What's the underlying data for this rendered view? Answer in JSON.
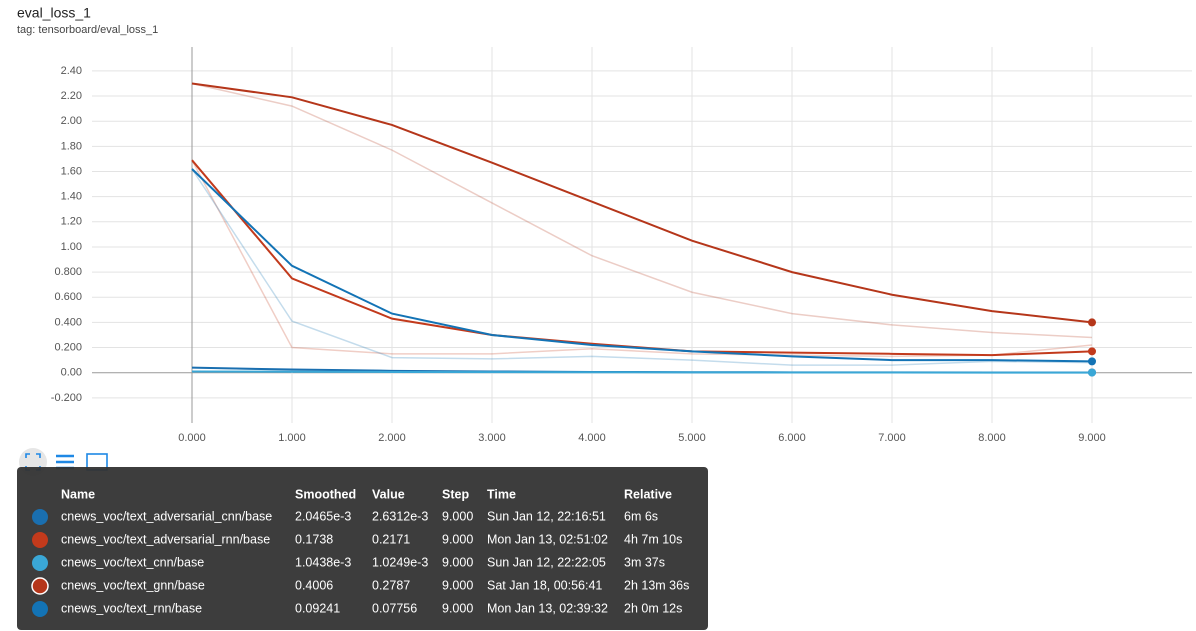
{
  "chart_data": {
    "type": "line",
    "title": "eval_loss_1",
    "subtitle": "tag: tensorboard/eval_loss_1",
    "x": [
      0,
      1,
      2,
      3,
      4,
      5,
      6,
      7,
      8,
      9
    ],
    "xlim": [
      -1,
      10
    ],
    "xticks": [
      {
        "value": 0,
        "label": "0.000"
      },
      {
        "value": 1,
        "label": "1.000"
      },
      {
        "value": 2,
        "label": "2.000"
      },
      {
        "value": 3,
        "label": "3.000"
      },
      {
        "value": 4,
        "label": "4.000"
      },
      {
        "value": 5,
        "label": "5.000"
      },
      {
        "value": 6,
        "label": "6.000"
      },
      {
        "value": 7,
        "label": "7.000"
      },
      {
        "value": 8,
        "label": "8.000"
      },
      {
        "value": 9,
        "label": "9.000"
      }
    ],
    "ylim": [
      -0.4,
      2.59
    ],
    "yticks": [
      {
        "value": -0.2,
        "label": "-0.200"
      },
      {
        "value": 0,
        "label": "0.00"
      },
      {
        "value": 0.2,
        "label": "0.200"
      },
      {
        "value": 0.4,
        "label": "0.400"
      },
      {
        "value": 0.6,
        "label": "0.600"
      },
      {
        "value": 0.8,
        "label": "0.800"
      },
      {
        "value": 1,
        "label": "1.00"
      },
      {
        "value": 1.2,
        "label": "1.20"
      },
      {
        "value": 1.4,
        "label": "1.40"
      },
      {
        "value": 1.6,
        "label": "1.60"
      },
      {
        "value": 1.8,
        "label": "1.80"
      },
      {
        "value": 2,
        "label": "2.00"
      },
      {
        "value": 2.2,
        "label": "2.20"
      },
      {
        "value": 2.4,
        "label": "2.40"
      }
    ],
    "grid": true,
    "series": [
      {
        "name": "cnews_voc/text_adversarial_cnn/base",
        "color": "#1a6fb0",
        "values": [
          0.04,
          0.025,
          0.015,
          0.01,
          0.006,
          0.004,
          0.003,
          0.003,
          0.002,
          0.002
        ],
        "raw": [
          0.04,
          0.02,
          0.01,
          0.008,
          0.005,
          0.004,
          0.003,
          0.003,
          0.002,
          0.0026
        ]
      },
      {
        "name": "cnews_voc/text_adversarial_rnn/base",
        "color": "#c23a1c",
        "values": [
          1.69,
          0.75,
          0.43,
          0.3,
          0.23,
          0.17,
          0.16,
          0.15,
          0.14,
          0.17
        ],
        "raw": [
          1.69,
          0.2,
          0.15,
          0.15,
          0.19,
          0.15,
          0.14,
          0.13,
          0.14,
          0.22
        ]
      },
      {
        "name": "cnews_voc/text_cnn/base",
        "color": "#3aa7d6",
        "values": [
          0.01,
          0.008,
          0.006,
          0.005,
          0.004,
          0.003,
          0.002,
          0.002,
          0.001,
          0.001
        ],
        "raw": [
          0.01,
          0.007,
          0.005,
          0.004,
          0.003,
          0.003,
          0.002,
          0.002,
          0.001,
          0.001
        ]
      },
      {
        "name": "cnews_voc/text_gnn/base",
        "color": "#b5361a",
        "values": [
          2.3,
          2.19,
          1.97,
          1.67,
          1.36,
          1.05,
          0.8,
          0.62,
          0.49,
          0.4
        ],
        "raw": [
          2.3,
          2.12,
          1.77,
          1.35,
          0.93,
          0.64,
          0.47,
          0.38,
          0.32,
          0.28
        ]
      },
      {
        "name": "cnews_voc/text_rnn/base",
        "color": "#1373b5",
        "values": [
          1.62,
          0.85,
          0.47,
          0.3,
          0.22,
          0.17,
          0.13,
          0.1,
          0.1,
          0.09
        ],
        "raw": [
          1.62,
          0.41,
          0.12,
          0.11,
          0.13,
          0.1,
          0.06,
          0.06,
          0.09,
          0.08
        ]
      }
    ]
  },
  "tooltip": {
    "columns": [
      "Name",
      "Smoothed",
      "Value",
      "Step",
      "Time",
      "Relative"
    ],
    "rows": [
      [
        "cnews_voc/text_adversarial_cnn/base",
        "2.0465e-3",
        "2.6312e-3",
        "9.000",
        "Sun Jan 12, 22:16:51",
        "6m 6s"
      ],
      [
        "cnews_voc/text_adversarial_rnn/base",
        "0.1738",
        "0.2171",
        "9.000",
        "Mon Jan 13, 02:51:02",
        "4h 7m 10s"
      ],
      [
        "cnews_voc/text_cnn/base",
        "1.0438e-3",
        "1.0249e-3",
        "9.000",
        "Sun Jan 12, 22:22:05",
        "3m 37s"
      ],
      [
        "cnews_voc/text_gnn/base",
        "0.4006",
        "0.2787",
        "9.000",
        "Sat Jan 18, 00:56:41",
        "2h 13m 36s"
      ],
      [
        "cnews_voc/text_rnn/base",
        "0.09241",
        "0.07756",
        "9.000",
        "Mon Jan 13, 02:39:32",
        "2h 0m 12s"
      ]
    ]
  }
}
